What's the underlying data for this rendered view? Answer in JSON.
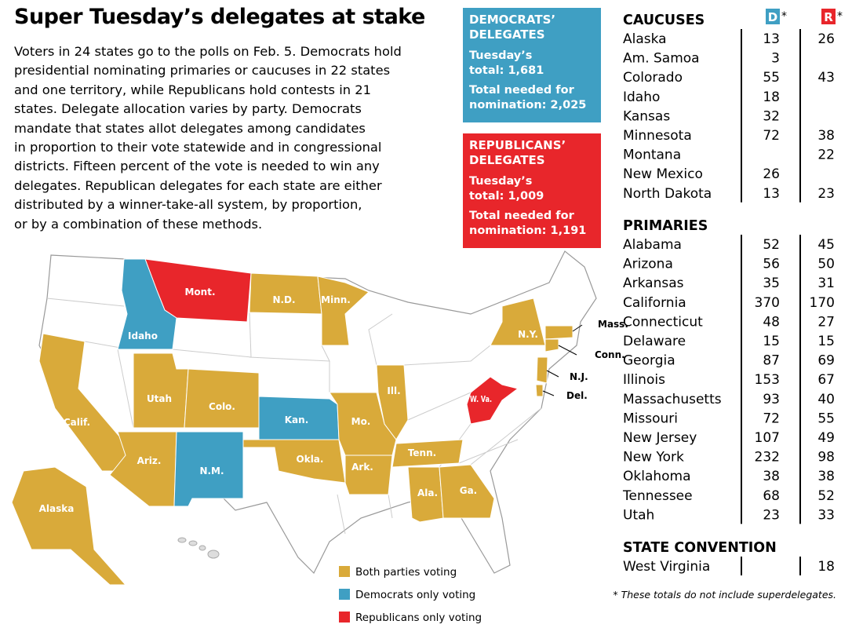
{
  "header": {
    "title": "Super Tuesday’s delegates at stake",
    "intro": [
      "Voters in 24 states go to the polls on Feb. 5. Democrats hold",
      "presidential nominating primaries or caucuses in 22 states",
      "and one territory, while Republicans hold contests in 21",
      "states. Delegate allocation varies by party. Democrats",
      "mandate that states allot delegates among candidates",
      "in proportion to their vote statewide and in congressional",
      "districts. Fifteen percent of the vote is needed to win any",
      "delegates. Republican delegates for each state are either",
      "distributed by a winner-take-all system, by proportion,",
      "or by a combination of these methods."
    ]
  },
  "boxes": [
    {
      "heading": [
        "DEMOCRATS’",
        "DELEGATES"
      ],
      "total_label": [
        "Tuesday’s",
        "total:"
      ],
      "total": "1,681",
      "needed_label": [
        "Total needed for",
        "nomination:"
      ],
      "needed": "2,025"
    },
    {
      "heading": [
        "REPUBLICANS’",
        "DELEGATES"
      ],
      "total_label": [
        "Tuesday’s",
        "total:"
      ],
      "total": "1,009",
      "needed_label": [
        "Total needed for",
        "nomination:"
      ],
      "needed": "1,191"
    }
  ],
  "table": {
    "dem_header": "D",
    "rep_header": "R",
    "mark": "*",
    "sections": [
      {
        "title": "CAUCUSES",
        "rows": [
          {
            "state": "Alaska",
            "dem": 13,
            "rep": 26
          },
          {
            "state": "Am. Samoa",
            "dem": 3,
            "rep": null
          },
          {
            "state": "Colorado",
            "dem": 55,
            "rep": 43
          },
          {
            "state": "Idaho",
            "dem": 18,
            "rep": null
          },
          {
            "state": "Kansas",
            "dem": 32,
            "rep": null
          },
          {
            "state": "Minnesota",
            "dem": 72,
            "rep": 38
          },
          {
            "state": "Montana",
            "dem": null,
            "rep": 22
          },
          {
            "state": "New Mexico",
            "dem": 26,
            "rep": null
          },
          {
            "state": "North Dakota",
            "dem": 13,
            "rep": 23
          }
        ]
      },
      {
        "title": "PRIMARIES",
        "rows": [
          {
            "state": "Alabama",
            "dem": 52,
            "rep": 45
          },
          {
            "state": "Arizona",
            "dem": 56,
            "rep": 50
          },
          {
            "state": "Arkansas",
            "dem": 35,
            "rep": 31
          },
          {
            "state": "California",
            "dem": 370,
            "rep": 170
          },
          {
            "state": "Connecticut",
            "dem": 48,
            "rep": 27
          },
          {
            "state": "Delaware",
            "dem": 15,
            "rep": 15
          },
          {
            "state": "Georgia",
            "dem": 87,
            "rep": 69
          },
          {
            "state": "Illinois",
            "dem": 153,
            "rep": 67
          },
          {
            "state": "Massachusetts",
            "dem": 93,
            "rep": 40
          },
          {
            "state": "Missouri",
            "dem": 72,
            "rep": 55
          },
          {
            "state": "New Jersey",
            "dem": 107,
            "rep": 49
          },
          {
            "state": "New York",
            "dem": 232,
            "rep": 98
          },
          {
            "state": "Oklahoma",
            "dem": 38,
            "rep": 38
          },
          {
            "state": "Tennessee",
            "dem": 68,
            "rep": 52
          },
          {
            "state": "Utah",
            "dem": 23,
            "rep": 33
          }
        ]
      },
      {
        "title": "STATE CONVENTION",
        "rows": [
          {
            "state": "West Virginia",
            "dem": null,
            "rep": 18
          }
        ]
      }
    ],
    "footnote": "* These totals do not include superdelegates."
  },
  "map": {
    "legend": [
      {
        "label": "Both parties voting",
        "color": "#d9aa3a"
      },
      {
        "label": "Democrats only voting",
        "color": "#3f9fc3"
      },
      {
        "label": "Republicans only voting",
        "color": "#e8262b"
      }
    ],
    "labels": [
      {
        "text": "Mont.",
        "group": 2
      },
      {
        "text": "Idaho",
        "group": 1
      },
      {
        "text": "N.D.",
        "group": 0
      },
      {
        "text": "Minn.",
        "group": 0
      },
      {
        "text": "N.Y.",
        "group": 0
      },
      {
        "text": "Mass.",
        "group": 0
      },
      {
        "text": "Conn.",
        "group": 0
      },
      {
        "text": "N.J.",
        "group": 0
      },
      {
        "text": "Del.",
        "group": 0
      },
      {
        "text": "Calif.",
        "group": 0
      },
      {
        "text": "Utah",
        "group": 0
      },
      {
        "text": "Colo.",
        "group": 0
      },
      {
        "text": "Ariz.",
        "group": 0
      },
      {
        "text": "N.M.",
        "group": 1
      },
      {
        "text": "Kan.",
        "group": 1
      },
      {
        "text": "Okla.",
        "group": 0
      },
      {
        "text": "Mo.",
        "group": 0
      },
      {
        "text": "Ill.",
        "group": 0
      },
      {
        "text": "Ark.",
        "group": 0
      },
      {
        "text": "Tenn.",
        "group": 0
      },
      {
        "text": "Ala.",
        "group": 0
      },
      {
        "text": "Ga.",
        "group": 0
      },
      {
        "text": "W. Va.",
        "group": 2
      },
      {
        "text": "Alaska",
        "group": 0
      }
    ]
  }
}
